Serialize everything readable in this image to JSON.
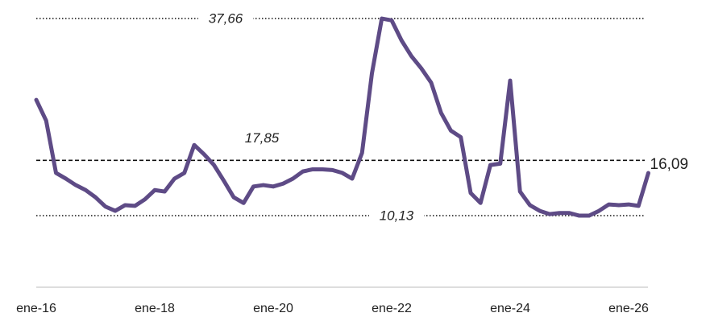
{
  "chart_data": {
    "type": "line",
    "categories": [
      "ene-16",
      null,
      null,
      null,
      null,
      null,
      null,
      null,
      null,
      null,
      null,
      null,
      "ene-18",
      null,
      null,
      null,
      null,
      null,
      null,
      null,
      null,
      null,
      null,
      null,
      "ene-20",
      null,
      null,
      null,
      null,
      null,
      null,
      null,
      null,
      null,
      null,
      null,
      "ene-22",
      null,
      null,
      null,
      null,
      null,
      null,
      null,
      null,
      null,
      null,
      null,
      "ene-24",
      null,
      null,
      null,
      null,
      null,
      null,
      null,
      null,
      null,
      null,
      null,
      "ene-26",
      null,
      null
    ],
    "values": [
      26.3,
      23.4,
      16.1,
      15.3,
      14.4,
      13.7,
      12.7,
      11.4,
      10.8,
      11.6,
      11.5,
      12.4,
      13.7,
      13.5,
      15.3,
      16.1,
      20.0,
      18.7,
      17.2,
      15.0,
      12.7,
      11.9,
      14.2,
      14.4,
      14.2,
      14.6,
      15.3,
      16.3,
      16.6,
      16.6,
      16.5,
      16.1,
      15.3,
      18.9,
      30.0,
      37.66,
      37.4,
      34.6,
      32.4,
      30.7,
      28.7,
      24.5,
      22.0,
      21.1,
      13.3,
      11.9,
      17.2,
      17.4,
      29.0,
      13.5,
      11.6,
      10.8,
      10.35,
      10.5,
      10.5,
      10.13,
      10.13,
      10.8,
      11.7,
      11.6,
      11.7,
      11.5,
      16.09
    ],
    "value_labels": [
      null,
      null,
      null,
      null,
      null,
      null,
      null,
      null,
      null,
      null,
      null,
      null,
      null,
      null,
      null,
      null,
      null,
      null,
      null,
      null,
      null,
      null,
      null,
      null,
      null,
      null,
      null,
      null,
      null,
      null,
      null,
      null,
      null,
      null,
      null,
      null,
      null,
      null,
      null,
      null,
      null,
      null,
      null,
      null,
      null,
      null,
      null,
      null,
      null,
      null,
      null,
      null,
      null,
      null,
      null,
      null,
      null,
      null,
      null,
      null,
      null,
      null,
      "16,09"
    ],
    "color": "#5e4b86",
    "ylim": [
      0,
      40
    ],
    "reference_lines": [
      {
        "value": 37.66,
        "label": "37,66",
        "style": "dotted"
      },
      {
        "value": 17.85,
        "label": "17,85",
        "style": "dashed"
      },
      {
        "value": 10.13,
        "label": "10,13",
        "style": "dotted"
      }
    ]
  }
}
